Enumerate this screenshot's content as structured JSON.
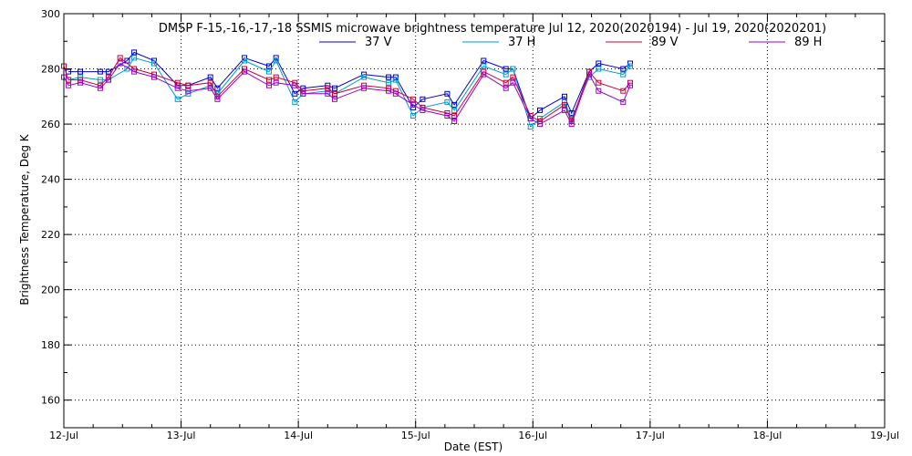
{
  "chart_data": {
    "type": "line",
    "title": "DMSP F-15,-16,-17,-18 SSMIS microwave brightness temperature Jul 12, 2020(2020194) - Jul 19, 2020(2020201)",
    "xlabel": "Date (EST)",
    "ylabel": "Brightness Temperature, Deg K",
    "xlim": [
      0,
      7
    ],
    "ylim": [
      150,
      300
    ],
    "x_tick_values": [
      0,
      1,
      2,
      3,
      4,
      5,
      6,
      7
    ],
    "x_tick_labels": [
      "12-Jul",
      "13-Jul",
      "14-Jul",
      "15-Jul",
      "16-Jul",
      "17-Jul",
      "18-Jul",
      "19-Jul"
    ],
    "y_ticks": [
      160,
      180,
      200,
      220,
      240,
      260,
      280,
      300
    ],
    "grid": true,
    "legend_position": "top-center",
    "series": [
      {
        "name": "37 V",
        "color": "#0000cc",
        "points": [
          [
            0.04,
            279
          ],
          [
            0.14,
            279
          ],
          [
            0.31,
            279
          ],
          [
            0.38,
            279
          ],
          [
            0.54,
            283
          ],
          [
            0.6,
            286
          ],
          [
            0.77,
            283
          ],
          [
            0.97,
            274
          ],
          [
            1.06,
            274
          ],
          [
            1.25,
            277
          ],
          [
            1.31,
            273
          ],
          [
            1.54,
            284
          ],
          [
            1.75,
            281
          ],
          [
            1.81,
            284
          ],
          [
            1.97,
            271
          ],
          [
            2.04,
            273
          ],
          [
            2.25,
            274
          ],
          [
            2.31,
            273
          ],
          [
            2.56,
            278
          ],
          [
            2.77,
            277
          ],
          [
            2.83,
            277
          ],
          [
            2.98,
            266
          ],
          [
            3.06,
            269
          ],
          [
            3.27,
            271
          ],
          [
            3.33,
            267
          ],
          [
            3.58,
            283
          ],
          [
            3.77,
            280
          ],
          [
            3.83,
            280
          ],
          [
            3.98,
            262
          ],
          [
            4.06,
            265
          ],
          [
            4.27,
            270
          ],
          [
            4.33,
            264
          ],
          [
            4.48,
            279
          ],
          [
            4.56,
            282
          ],
          [
            4.77,
            280
          ],
          [
            4.83,
            282
          ]
        ]
      },
      {
        "name": "37 H",
        "color": "#0099cc",
        "points": [
          [
            0.04,
            276
          ],
          [
            0.14,
            277
          ],
          [
            0.31,
            276
          ],
          [
            0.38,
            276
          ],
          [
            0.54,
            280
          ],
          [
            0.6,
            284
          ],
          [
            0.77,
            282
          ],
          [
            0.97,
            269
          ],
          [
            1.06,
            271
          ],
          [
            1.25,
            274
          ],
          [
            1.31,
            271
          ],
          [
            1.54,
            283
          ],
          [
            1.75,
            279
          ],
          [
            1.81,
            283
          ],
          [
            1.97,
            268
          ],
          [
            2.04,
            271
          ],
          [
            2.25,
            272
          ],
          [
            2.31,
            271
          ],
          [
            2.56,
            277
          ],
          [
            2.77,
            275
          ],
          [
            2.83,
            276
          ],
          [
            2.98,
            263
          ],
          [
            3.06,
            266
          ],
          [
            3.27,
            268
          ],
          [
            3.33,
            265
          ],
          [
            3.58,
            281
          ],
          [
            3.77,
            278
          ],
          [
            3.83,
            280
          ],
          [
            3.98,
            259
          ],
          [
            4.06,
            262
          ],
          [
            4.27,
            268
          ],
          [
            4.33,
            262
          ],
          [
            4.48,
            277
          ],
          [
            4.56,
            280
          ],
          [
            4.77,
            278
          ],
          [
            4.83,
            281
          ]
        ]
      },
      {
        "name": "89 V",
        "color": "#cc0033",
        "points": [
          [
            0.0,
            281
          ],
          [
            0.04,
            276
          ],
          [
            0.14,
            276
          ],
          [
            0.31,
            274
          ],
          [
            0.38,
            277
          ],
          [
            0.48,
            284
          ],
          [
            0.6,
            280
          ],
          [
            0.77,
            278
          ],
          [
            0.97,
            275
          ],
          [
            1.06,
            274
          ],
          [
            1.25,
            275
          ],
          [
            1.31,
            270
          ],
          [
            1.54,
            280
          ],
          [
            1.75,
            276
          ],
          [
            1.81,
            277
          ],
          [
            1.97,
            275
          ],
          [
            2.04,
            272
          ],
          [
            2.25,
            273
          ],
          [
            2.31,
            271
          ],
          [
            2.56,
            274
          ],
          [
            2.77,
            273
          ],
          [
            2.83,
            272
          ],
          [
            2.98,
            269
          ],
          [
            3.06,
            266
          ],
          [
            3.27,
            264
          ],
          [
            3.33,
            263
          ],
          [
            3.58,
            279
          ],
          [
            3.77,
            275
          ],
          [
            3.83,
            277
          ],
          [
            3.98,
            263
          ],
          [
            4.06,
            261
          ],
          [
            4.27,
            267
          ],
          [
            4.33,
            261
          ],
          [
            4.48,
            279
          ],
          [
            4.56,
            275
          ],
          [
            4.77,
            272
          ],
          [
            4.83,
            275
          ]
        ]
      },
      {
        "name": "89 H",
        "color": "#9900cc",
        "points": [
          [
            0.0,
            277
          ],
          [
            0.04,
            274
          ],
          [
            0.14,
            275
          ],
          [
            0.31,
            273
          ],
          [
            0.38,
            276
          ],
          [
            0.48,
            282
          ],
          [
            0.6,
            279
          ],
          [
            0.77,
            277
          ],
          [
            0.97,
            273
          ],
          [
            1.06,
            272
          ],
          [
            1.25,
            273
          ],
          [
            1.31,
            269
          ],
          [
            1.54,
            279
          ],
          [
            1.75,
            274
          ],
          [
            1.81,
            275
          ],
          [
            1.97,
            274
          ],
          [
            2.04,
            271
          ],
          [
            2.25,
            271
          ],
          [
            2.31,
            269
          ],
          [
            2.56,
            273
          ],
          [
            2.77,
            272
          ],
          [
            2.83,
            271
          ],
          [
            2.98,
            267
          ],
          [
            3.06,
            265
          ],
          [
            3.27,
            263
          ],
          [
            3.33,
            261
          ],
          [
            3.58,
            278
          ],
          [
            3.77,
            273
          ],
          [
            3.83,
            275
          ],
          [
            3.98,
            262
          ],
          [
            4.06,
            260
          ],
          [
            4.27,
            265
          ],
          [
            4.33,
            260
          ],
          [
            4.48,
            278
          ],
          [
            4.56,
            272
          ],
          [
            4.77,
            268
          ],
          [
            4.83,
            274
          ]
        ]
      }
    ]
  }
}
